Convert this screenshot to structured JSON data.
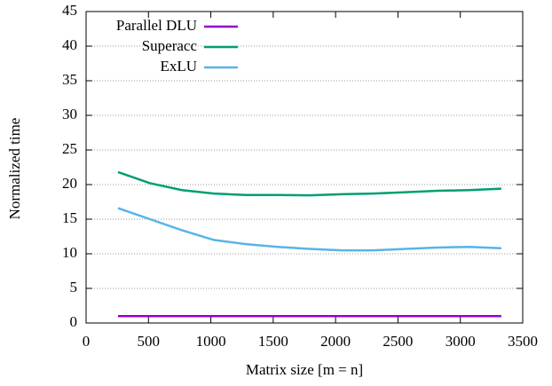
{
  "chart_data": {
    "type": "line",
    "xlabel": "Matrix size [m = n]",
    "ylabel": "Normalized time",
    "x": [
      256,
      512,
      768,
      1024,
      1280,
      1536,
      1792,
      2048,
      2304,
      2560,
      2816,
      3072,
      3328
    ],
    "series": [
      {
        "name": "Parallel DLU",
        "color": "#9400d3",
        "values": [
          1,
          1,
          1,
          1,
          1,
          1,
          1,
          1,
          1,
          1,
          1,
          1,
          1
        ]
      },
      {
        "name": "Superacc",
        "color": "#009e73",
        "values": [
          21.8,
          20.2,
          19.2,
          18.7,
          18.5,
          18.5,
          18.45,
          18.6,
          18.7,
          18.9,
          19.1,
          19.2,
          19.4
        ]
      },
      {
        "name": "ExLU",
        "color": "#56b4e9",
        "values": [
          16.6,
          15.0,
          13.4,
          12.0,
          11.4,
          11.0,
          10.7,
          10.5,
          10.5,
          10.7,
          10.9,
          11.0,
          10.8
        ]
      }
    ],
    "xlim": [
      0,
      3500
    ],
    "xticks": [
      0,
      500,
      1000,
      1500,
      2000,
      2500,
      3000,
      3500
    ],
    "ylim": [
      0,
      45
    ],
    "yticks": [
      0,
      5,
      10,
      15,
      20,
      25,
      30,
      35,
      40,
      45
    ],
    "grid": "y",
    "legend": "top-left"
  }
}
